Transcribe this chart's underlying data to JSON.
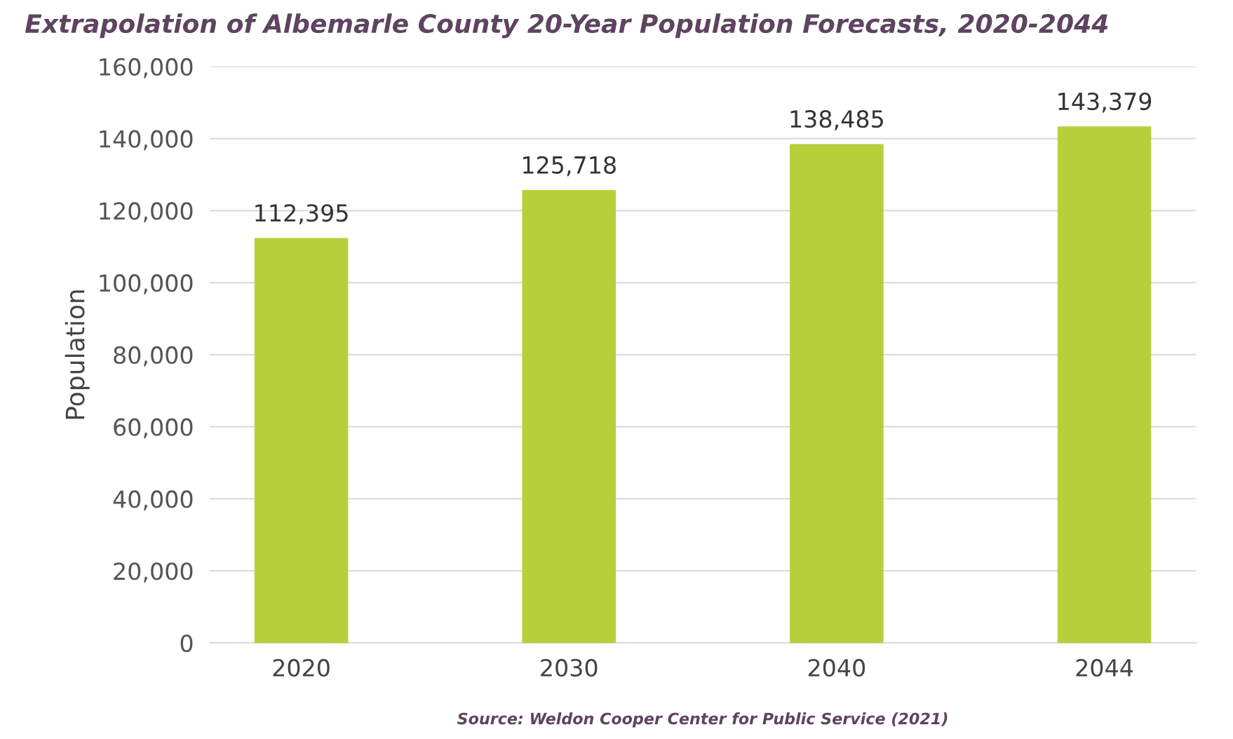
{
  "chart_data": {
    "type": "bar",
    "title": "Extrapolation of Albemarle County 20-Year Population Forecasts, 2020-2044",
    "ylabel": "Population",
    "categories": [
      "2020",
      "2030",
      "2040",
      "2044"
    ],
    "values": [
      112395,
      125718,
      138485,
      143379
    ],
    "color": "#b8cf3c",
    "ylim": [
      0,
      160000
    ],
    "yticks": [
      {
        "value": 0,
        "label": "0"
      },
      {
        "value": 20000,
        "label": "20,000"
      },
      {
        "value": 40000,
        "label": "40,000"
      },
      {
        "value": 60000,
        "label": "60,000"
      },
      {
        "value": 80000,
        "label": "80,000"
      },
      {
        "value": 100000,
        "label": "100,000"
      },
      {
        "value": 120000,
        "label": "120,000"
      },
      {
        "value": 140000,
        "label": "140,000"
      },
      {
        "value": 160000,
        "label": "160,000"
      }
    ],
    "grid": "y",
    "value_labels": [
      "112,395",
      "125,718",
      "138,485",
      "143,379"
    ],
    "annotations": [
      "Source: Weldon Cooper Center for Public Service (2021)"
    ]
  }
}
